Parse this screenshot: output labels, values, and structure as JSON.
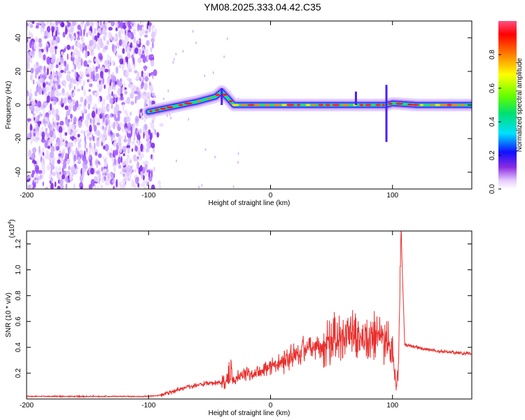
{
  "title": "YM08.2025.333.04.42.C35",
  "chart_data": [
    {
      "type": "heatmap",
      "xlabel": "Height of straight line (km)",
      "ylabel": "Frequency (Hz)",
      "xlim": [
        -200,
        165
      ],
      "ylim": [
        -50,
        50
      ],
      "xticks": [
        "-200",
        "-100",
        "0",
        "100"
      ],
      "yticks": [
        "-40",
        "-20",
        "0",
        "20",
        "40"
      ],
      "colorbar": {
        "label": "Normalized spectral amplitude",
        "range": [
          0,
          1
        ],
        "ticks": [
          "0.0",
          "0.2",
          "0.4",
          "0.6",
          "0.8"
        ]
      },
      "track": {
        "x": [
          -100,
          -80,
          -60,
          -45,
          -40,
          -30,
          0,
          40,
          70,
          85,
          95,
          100,
          120,
          165
        ],
        "y": [
          -4,
          -1,
          2,
          5,
          8,
          0,
          0,
          0,
          0,
          0,
          0,
          1,
          0,
          0
        ]
      },
      "noise_region_x": [
        -200,
        -95
      ]
    },
    {
      "type": "line",
      "xlabel": "Height of straight line (km)",
      "ylabel": "SNR (10 * v/v)",
      "scale_note": "(x10",
      "scale_exp": "4",
      "xlim": [
        -200,
        165
      ],
      "ylim": [
        0,
        1.3
      ],
      "xticks": [
        "-200",
        "-100",
        "0",
        "100"
      ],
      "yticks": [
        "0.2",
        "0.4",
        "0.6",
        "0.8",
        "1.0",
        "1.2"
      ],
      "series": [
        {
          "color": "#e8302e",
          "x": [
            -200,
            -150,
            -100,
            -90,
            -80,
            -70,
            -60,
            -50,
            -40,
            -30,
            -20,
            -10,
            0,
            10,
            20,
            30,
            40,
            50,
            60,
            70,
            80,
            90,
            100,
            103,
            105,
            107,
            110,
            120,
            130,
            140,
            150,
            165
          ],
          "y": [
            0.02,
            0.02,
            0.02,
            0.03,
            0.06,
            0.09,
            0.11,
            0.12,
            0.13,
            0.16,
            0.2,
            0.22,
            0.25,
            0.3,
            0.36,
            0.4,
            0.42,
            0.44,
            0.46,
            0.47,
            0.48,
            0.47,
            0.4,
            0.06,
            0.3,
            1.3,
            0.42,
            0.4,
            0.38,
            0.37,
            0.36,
            0.35
          ]
        }
      ]
    }
  ]
}
